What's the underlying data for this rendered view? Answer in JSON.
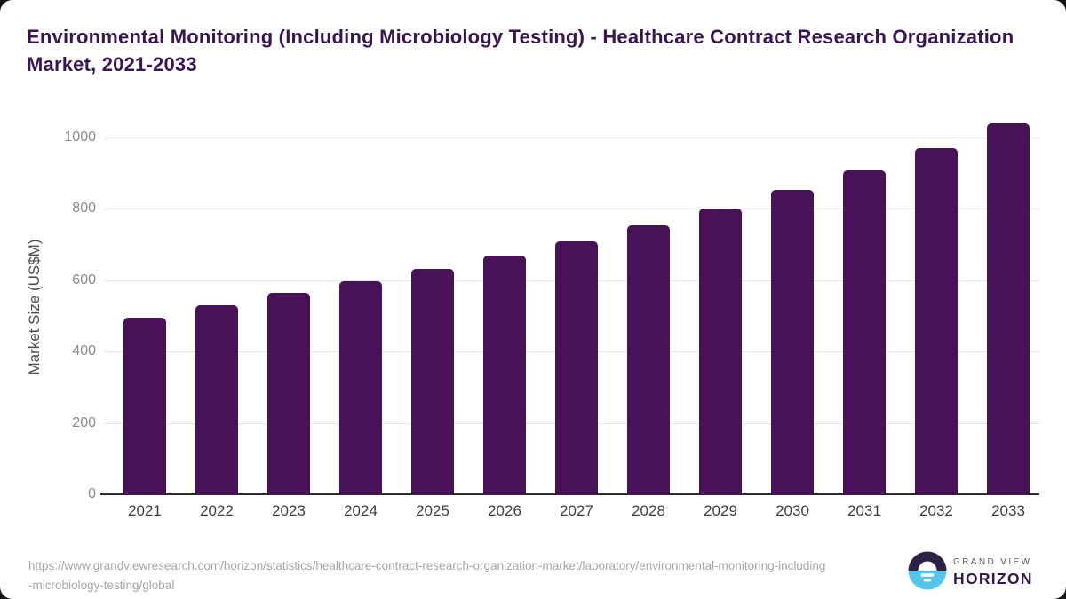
{
  "header": {
    "title": "Environmental Monitoring (Including Microbiology Testing) - Healthcare Contract Research Organization Market, 2021-2033"
  },
  "chart_data": {
    "type": "bar",
    "title": "Environmental Monitoring (Including Microbiology Testing) - Healthcare Contract Research Organization Market, 2021-2033",
    "categories": [
      "2021",
      "2022",
      "2023",
      "2024",
      "2025",
      "2026",
      "2027",
      "2028",
      "2029",
      "2030",
      "2031",
      "2032",
      "2033"
    ],
    "values": [
      495,
      530,
      565,
      597,
      632,
      668,
      708,
      754,
      802,
      854,
      909,
      970,
      1040
    ],
    "xlabel": "",
    "ylabel": "Market Size (US$M)",
    "yticks": [
      0,
      200,
      400,
      600,
      800,
      1000
    ],
    "ylim": [
      0,
      1050
    ],
    "grid": true,
    "legend": false
  },
  "footer": {
    "source_url": "https://www.grandviewresearch.com/horizon/statistics/healthcare-contract-research-organization-market/laboratory/environmental-monitoring-including-microbiology-testing/global",
    "logo": {
      "brand_line1": "GRAND VIEW",
      "brand_line2": "HORIZON"
    }
  },
  "colors": {
    "bar": "#491157",
    "title_text": "#3a1453",
    "y_tick_text": "#8a8a8a",
    "x_tick_text": "#3f3f3f",
    "y_title_text": "#4d4d4d",
    "gridline": "#e4e4e4",
    "baseline": "#2d2d2d",
    "url_text": "#a6a6a6",
    "logo_navy": "#2d2147",
    "logo_blue": "#55c6ea",
    "logo_brand_text": "#5c5c5c",
    "logo_product_text": "#35164d"
  }
}
